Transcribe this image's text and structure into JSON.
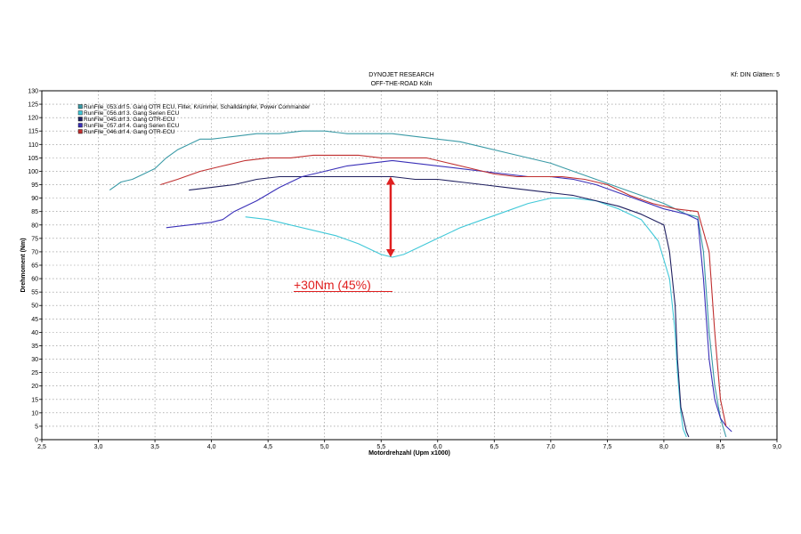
{
  "header": {
    "line1": "DYNOJET RESEARCH",
    "line2": "OFF-THE-ROAD Köln",
    "settings": "Kf: DIN  Glätten: 5"
  },
  "chart_data": {
    "type": "line",
    "xlabel": "Motordrehzahl (Upm x1000)",
    "ylabel": "Drehmoment (Nm)",
    "xlim": [
      2.5,
      9.0
    ],
    "ylim": [
      0,
      130
    ],
    "x_ticks": [
      "2,5",
      "3,0",
      "3,5",
      "4,0",
      "4,5",
      "5,0",
      "5,5",
      "6,0",
      "6,5",
      "7,0",
      "7,5",
      "8,0",
      "8,5",
      "9,0"
    ],
    "y_ticks": [
      "0",
      "5",
      "10",
      "15",
      "20",
      "25",
      "30",
      "35",
      "40",
      "45",
      "50",
      "55",
      "60",
      "65",
      "70",
      "75",
      "80",
      "85",
      "90",
      "95",
      "100",
      "105",
      "110",
      "115",
      "120",
      "125",
      "130"
    ],
    "grid": true,
    "legend_position": "top-left",
    "series": [
      {
        "name": "RunFile_053.drf 5. Gang OTR ECU, Filter, Krümmer, Schalldämpfer, Power Commander",
        "color": "#3a9aa6",
        "x": [
          3.1,
          3.2,
          3.3,
          3.4,
          3.5,
          3.6,
          3.7,
          3.8,
          3.9,
          4.0,
          4.2,
          4.4,
          4.6,
          4.8,
          5.0,
          5.2,
          5.4,
          5.6,
          5.8,
          6.0,
          6.2,
          6.4,
          6.6,
          6.8,
          7.0,
          7.2,
          7.4,
          7.6,
          7.8,
          8.0,
          8.2,
          8.3,
          8.35,
          8.4,
          8.45,
          8.5,
          8.55
        ],
        "y": [
          93,
          96,
          97,
          99,
          101,
          105,
          108,
          110,
          112,
          112,
          113,
          114,
          114,
          115,
          115,
          114,
          114,
          114,
          113,
          112,
          111,
          109,
          107,
          105,
          103,
          100,
          97,
          94,
          91,
          88,
          84,
          83,
          70,
          40,
          20,
          8,
          1
        ]
      },
      {
        "name": "RunFile_056.drf 3. Gang Serien ECU",
        "color": "#40c8d8",
        "x": [
          4.3,
          4.5,
          4.7,
          4.9,
          5.1,
          5.3,
          5.5,
          5.6,
          5.7,
          5.8,
          6.0,
          6.2,
          6.4,
          6.6,
          6.8,
          7.0,
          7.2,
          7.4,
          7.6,
          7.8,
          7.95,
          8.05,
          8.1,
          8.12,
          8.15,
          8.17,
          8.2
        ],
        "y": [
          83,
          82,
          80,
          78,
          76,
          73,
          69,
          68,
          69,
          71,
          75,
          79,
          82,
          85,
          88,
          90,
          90,
          89,
          86,
          82,
          74,
          60,
          40,
          25,
          10,
          4,
          1
        ]
      },
      {
        "name": "RunFile_045.drf 3. Gang OTR-ECU",
        "color": "#202060",
        "x": [
          3.8,
          4.0,
          4.2,
          4.4,
          4.6,
          4.8,
          5.0,
          5.2,
          5.4,
          5.6,
          5.8,
          6.0,
          6.2,
          6.4,
          6.6,
          6.8,
          7.0,
          7.2,
          7.4,
          7.6,
          7.8,
          8.0,
          8.05,
          8.1,
          8.12,
          8.15,
          8.2,
          8.22
        ],
        "y": [
          93,
          94,
          95,
          97,
          98,
          98,
          98,
          98,
          98,
          98,
          97,
          97,
          96,
          95,
          94,
          93,
          92,
          91,
          89,
          87,
          84,
          80,
          70,
          50,
          30,
          12,
          3,
          1
        ]
      },
      {
        "name": "RunFile_057.drf 4. Gang Serien ECU",
        "color": "#3a30b8",
        "x": [
          3.6,
          3.8,
          4.0,
          4.1,
          4.2,
          4.4,
          4.6,
          4.8,
          5.0,
          5.2,
          5.4,
          5.6,
          5.8,
          6.0,
          6.2,
          6.4,
          6.6,
          6.8,
          7.0,
          7.2,
          7.4,
          7.6,
          7.8,
          8.0,
          8.2,
          8.3,
          8.35,
          8.4,
          8.45,
          8.5,
          8.55,
          8.6
        ],
        "y": [
          79,
          80,
          81,
          82,
          85,
          89,
          94,
          98,
          100,
          102,
          103,
          104,
          103,
          102,
          101,
          100,
          99,
          98,
          98,
          97,
          95,
          92,
          89,
          86,
          84,
          82,
          60,
          30,
          15,
          8,
          5,
          3
        ]
      },
      {
        "name": "RunFile_046.drf 4. Gang OTR-ECU",
        "color": "#c03030",
        "x": [
          3.55,
          3.7,
          3.9,
          4.1,
          4.3,
          4.5,
          4.7,
          4.9,
          5.1,
          5.3,
          5.5,
          5.7,
          5.9,
          6.1,
          6.3,
          6.5,
          6.7,
          6.9,
          7.1,
          7.3,
          7.5,
          7.7,
          7.9,
          8.1,
          8.3,
          8.4,
          8.45,
          8.5,
          8.55
        ],
        "y": [
          95,
          97,
          100,
          102,
          104,
          105,
          105,
          106,
          106,
          106,
          105,
          105,
          105,
          103,
          101,
          99,
          98,
          98,
          98,
          97,
          95,
          91,
          88,
          86,
          85,
          70,
          40,
          15,
          5
        ]
      }
    ],
    "annotations": [
      {
        "text": "+30Nm (45%)",
        "color": "#e02020",
        "arrow_x": 5.6,
        "arrow_y_from": 68,
        "arrow_y_to": 98
      }
    ]
  }
}
